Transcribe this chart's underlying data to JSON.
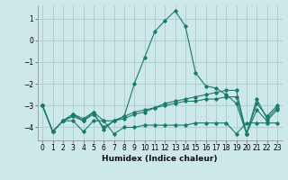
{
  "xlabel": "Humidex (Indice chaleur)",
  "bg_color": "#cce8e8",
  "grid_color": "#aacccc",
  "line_color": "#1a7a6e",
  "xlim": [
    -0.5,
    23.5
  ],
  "ylim": [
    -4.6,
    1.6
  ],
  "yticks": [
    -4,
    -3,
    -2,
    -1,
    0,
    1
  ],
  "xticks": [
    0,
    1,
    2,
    3,
    4,
    5,
    6,
    7,
    8,
    9,
    10,
    11,
    12,
    13,
    14,
    15,
    16,
    17,
    18,
    19,
    20,
    21,
    22,
    23
  ],
  "series1_x": [
    0,
    1,
    2,
    3,
    4,
    5,
    6,
    7,
    8,
    9,
    10,
    11,
    12,
    13,
    14,
    15,
    16,
    17,
    18,
    19,
    20,
    21,
    22,
    23
  ],
  "series1_y": [
    -3.0,
    -4.2,
    -3.7,
    -3.7,
    -4.2,
    -3.7,
    -3.7,
    -4.3,
    -4.0,
    -4.0,
    -3.9,
    -3.9,
    -3.9,
    -3.9,
    -3.9,
    -3.8,
    -3.8,
    -3.8,
    -3.8,
    -4.3,
    -3.8,
    -3.8,
    -3.8,
    -3.8
  ],
  "series2_x": [
    0,
    1,
    2,
    3,
    4,
    5,
    6,
    7,
    8,
    9,
    10,
    11,
    12,
    13,
    14,
    15,
    16,
    17,
    18,
    19,
    20,
    21,
    22,
    23
  ],
  "series2_y": [
    -3.0,
    -4.2,
    -3.7,
    -3.5,
    -3.7,
    -3.4,
    -4.0,
    -3.7,
    -3.5,
    -3.3,
    -3.2,
    -3.1,
    -3.0,
    -2.9,
    -2.8,
    -2.8,
    -2.7,
    -2.7,
    -2.6,
    -2.6,
    -4.3,
    -3.2,
    -3.7,
    -3.2
  ],
  "series3_x": [
    0,
    1,
    2,
    3,
    4,
    5,
    6,
    7,
    8,
    9,
    10,
    11,
    12,
    13,
    14,
    15,
    16,
    17,
    18,
    19,
    20,
    21,
    22,
    23
  ],
  "series3_y": [
    -3.0,
    -4.2,
    -3.7,
    -3.4,
    -3.6,
    -3.3,
    -4.1,
    -3.7,
    -3.5,
    -2.0,
    -0.8,
    0.4,
    0.9,
    1.35,
    0.65,
    -1.5,
    -2.1,
    -2.2,
    -2.5,
    -2.9,
    -4.3,
    -2.9,
    -3.5,
    -3.0
  ],
  "series4_x": [
    0,
    1,
    2,
    3,
    4,
    5,
    6,
    7,
    8,
    9,
    10,
    11,
    12,
    13,
    14,
    15,
    16,
    17,
    18,
    19,
    20,
    21,
    22,
    23
  ],
  "series4_y": [
    -3.0,
    -4.2,
    -3.7,
    -3.4,
    -3.7,
    -3.3,
    -3.7,
    -3.7,
    -3.6,
    -3.4,
    -3.3,
    -3.1,
    -2.9,
    -2.8,
    -2.7,
    -2.6,
    -2.5,
    -2.4,
    -2.3,
    -2.3,
    -4.3,
    -2.7,
    -3.6,
    -3.1
  ]
}
